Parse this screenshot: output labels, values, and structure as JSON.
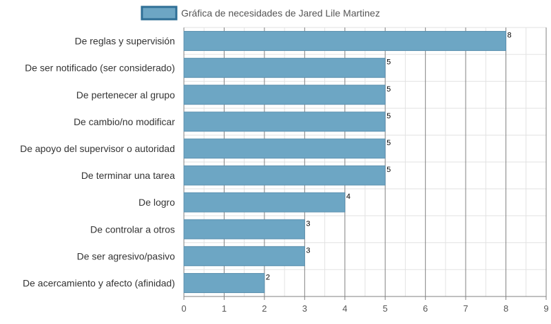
{
  "chart_data": {
    "type": "bar",
    "orientation": "horizontal",
    "categories": [
      "De reglas y supervisión",
      "De ser notificado (ser considerado)",
      "De pertenecer al grupo",
      "De cambio/no modificar",
      "De apoyo del supervisor o autoridad",
      "De terminar una tarea",
      "De logro",
      "De controlar a otros",
      "De ser agresivo/pasivo",
      "De acercamiento y afecto (afinidad)"
    ],
    "series": [
      {
        "name": "Gráfica de necesidades de Jared Lile Martinez",
        "values": [
          8,
          5,
          5,
          5,
          5,
          5,
          4,
          3,
          3,
          2
        ]
      }
    ],
    "xlim": [
      0,
      9
    ],
    "ticks": [
      "0",
      "1",
      "2",
      "3",
      "4",
      "5",
      "6",
      "7",
      "8",
      "9"
    ],
    "title": "",
    "xlabel": "",
    "ylabel": "",
    "grid": true,
    "legend": "top-center",
    "data_labels": true,
    "colors": {
      "bar_fill": "#6da6c4",
      "bar_stroke": "#5a8fae",
      "legend_fill": "#6da6c4",
      "legend_stroke": "#2f6f96",
      "grid_major": "#808080",
      "grid_minor": "#e2e2e2",
      "text": "#333333"
    }
  }
}
